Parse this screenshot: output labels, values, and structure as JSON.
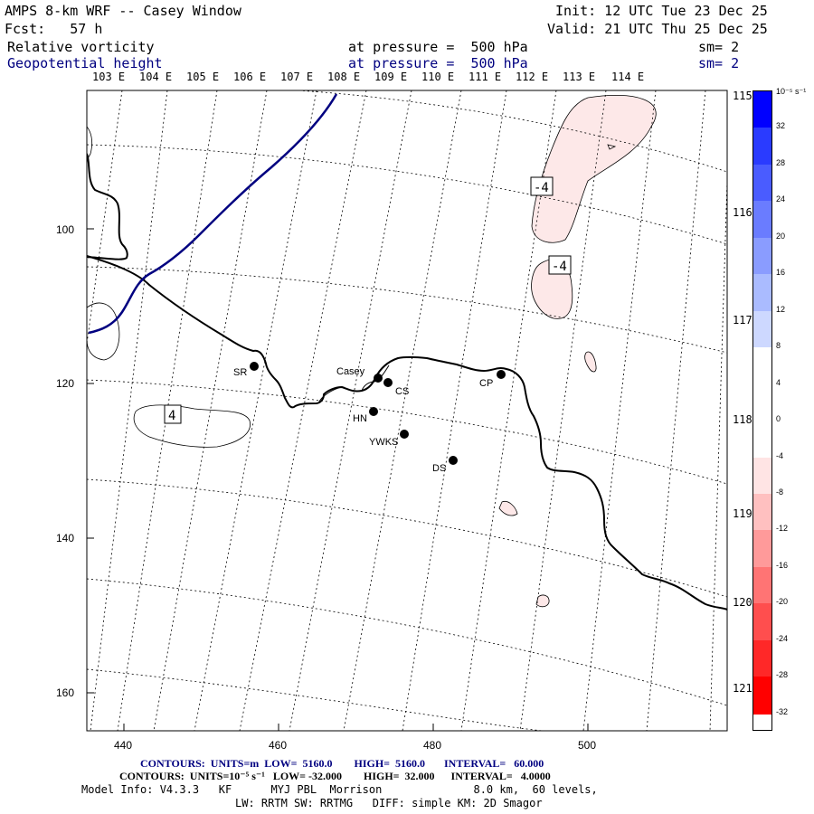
{
  "header": {
    "title": "AMPS 8-km WRF -- Casey Window",
    "init": "Init: 12 UTC Tue 23 Dec 25",
    "fcst": "Fcst:   57 h",
    "valid": "Valid: 21 UTC Thu 25 Dec 25",
    "field1": "Relative vorticity",
    "field1_pressure": "at pressure =  500 hPa",
    "field1_sm": "sm= 2",
    "field2": "Geopotential height",
    "field2_pressure": "at pressure =  500 hPa",
    "field2_sm": "sm= 2"
  },
  "map": {
    "lon_labels_top": [
      "103 E",
      "104 E",
      "105 E",
      "106 E",
      "107 E",
      "108 E",
      "109 E",
      "110 E",
      "111 E",
      "112 E",
      "113 E",
      "114 E"
    ],
    "lat_labels_right": [
      "115 E",
      "116 E",
      "117 E",
      "118 E",
      "119 E",
      "120 E",
      "121 E"
    ],
    "x_ticks": [
      "440",
      "460",
      "480",
      "500"
    ],
    "y_ticks": [
      "100",
      "120",
      "140",
      "160"
    ],
    "contour_labels": [
      "-4",
      "-4",
      "4"
    ],
    "stations": [
      {
        "code": "SR"
      },
      {
        "code": "Casey"
      },
      {
        "code": "CS"
      },
      {
        "code": "CP"
      },
      {
        "code": "HN"
      },
      {
        "code": "YWKS"
      },
      {
        "code": "DS"
      }
    ],
    "colors": {
      "height_contour": "#000080",
      "coast": "#000000",
      "neg_fill": "#fde8e8"
    }
  },
  "legend": {
    "units": "10⁻⁵ s⁻¹",
    "values": [
      "32",
      "28",
      "24",
      "20",
      "16",
      "12",
      "8",
      "4",
      "0",
      "-4",
      "-8",
      "-12",
      "-16",
      "-20",
      "-24",
      "-28",
      "-32"
    ],
    "colors": [
      "#0000ff",
      "#2a3bff",
      "#4a5cff",
      "#6a7cff",
      "#8a9cff",
      "#aabbff",
      "#cdd8ff",
      "#ffffff",
      "#ffffff",
      "#ffffff",
      "#ffe4e4",
      "#ffc0c0",
      "#ff9a9a",
      "#ff7474",
      "#ff4e4e",
      "#ff2828",
      "#ff0000"
    ]
  },
  "footer": {
    "line1": "CONTOURS:  UNITS=m  LOW=  5160.0        HIGH=  5160.0       INTERVAL=   60.000",
    "line2": "CONTOURS:  UNITS=10⁻⁵ s⁻¹   LOW= -32.000        HIGH=  32.000      INTERVAL=   4.0000",
    "line3": "Model Info: V4.3.3   KF      MYJ PBL  Morrison              8.0 km,  60 levels,",
    "line4": "LW: RRTM SW: RRTMG   DIFF: simple KM: 2D Smagor"
  }
}
